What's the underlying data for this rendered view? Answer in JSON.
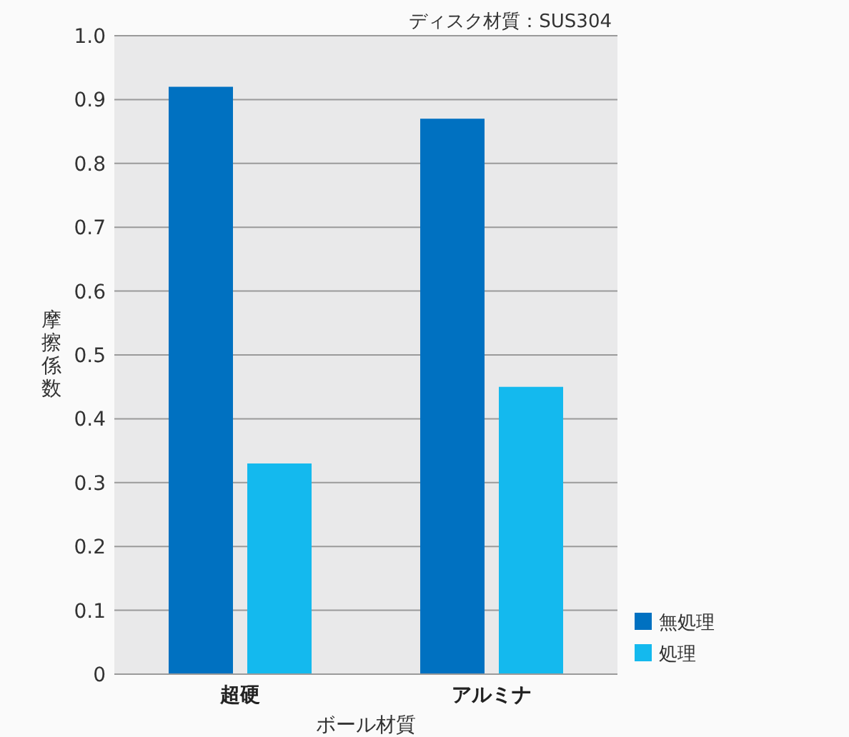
{
  "chart_data": {
    "type": "bar",
    "xlabel": "ボール材質",
    "ylabel": "摩擦係数",
    "annotations": [
      "ディスク材質：SUS304"
    ],
    "categories": [
      "超硬",
      "アルミナ"
    ],
    "series": [
      {
        "name": "無処理",
        "color": "#0071c1",
        "values": [
          0.92,
          0.87
        ]
      },
      {
        "name": "処理",
        "color": "#14b9ee",
        "values": [
          0.33,
          0.45
        ]
      }
    ],
    "ylim": [
      0,
      1
    ],
    "yticks": [
      0,
      0.1,
      0.2,
      0.3,
      0.4,
      0.5,
      0.6,
      0.7,
      0.8,
      0.9,
      {
        "value": 1,
        "label": "1.0"
      }
    ],
    "grid": "y",
    "legend": "bottom right"
  }
}
